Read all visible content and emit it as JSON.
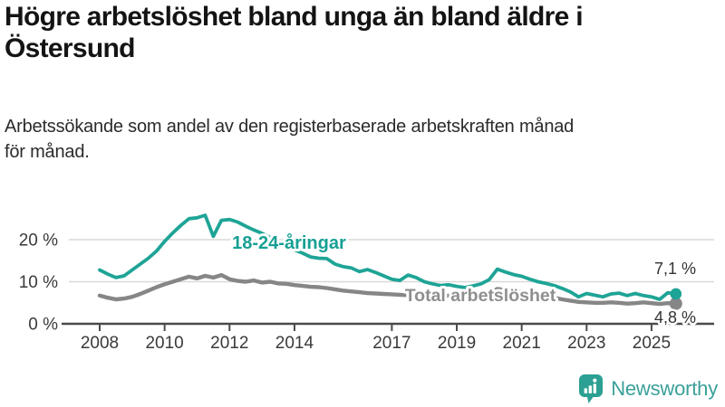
{
  "header": {
    "title_line1": "Högre arbetslöshet bland unga än bland äldre i",
    "title_line2": "Östersund",
    "subtitle_line1": "Arbetssökande som andel av den registerbaserade arbetskraften månad",
    "subtitle_line2": "för månad."
  },
  "footer": {
    "brand_name": "Newsworthy",
    "brand_color": "#3aa09a",
    "icon_color": "#2ba093"
  },
  "chart_data": {
    "type": "line",
    "title": "Högre arbetslöshet bland unga än bland äldre i Östersund",
    "subtitle": "Arbetssökande som andel av den registerbaserade arbetskraften månad för månad.",
    "grid": "horizontal",
    "legend_position": "inline-labels",
    "x_axis": {
      "ticks": [
        2008,
        2010,
        2012,
        2014,
        2017,
        2019,
        2021,
        2023,
        2025
      ],
      "range": [
        2007.3,
        2026.2
      ],
      "unit": "year, monthly observations"
    },
    "y_axis": {
      "ticks": [
        {
          "value": 0,
          "label": "0 %"
        },
        {
          "value": 10,
          "label": "10 %"
        },
        {
          "value": 20,
          "label": "20 %"
        }
      ],
      "range": [
        0,
        27
      ]
    },
    "series": [
      {
        "id": "total",
        "name": "Total arbetslöshet",
        "color": "#868686",
        "label_color": "#8f8f8f",
        "line_width": 4.4,
        "label_font_size": 19.5,
        "label_anchor": {
          "year": 2017.4,
          "value": 5.4
        },
        "end_label": "4,8 %",
        "end_value": 4.8,
        "end_label_position": "below",
        "start_year": 2008,
        "step_years": 0.25,
        "values": [
          6.7,
          6.2,
          5.8,
          6.0,
          6.4,
          7.1,
          7.9,
          8.7,
          9.4,
          10.0,
          10.6,
          11.2,
          10.8,
          11.4,
          11.0,
          11.6,
          10.6,
          10.2,
          10.0,
          10.3,
          9.8,
          10.0,
          9.6,
          9.5,
          9.2,
          9.0,
          8.8,
          8.7,
          8.5,
          8.2,
          7.9,
          7.7,
          7.5,
          7.3,
          7.2,
          7.1,
          7.0,
          6.9,
          6.8,
          6.9,
          6.8,
          6.6,
          6.5,
          6.7,
          6.5,
          6.4,
          6.6,
          6.8,
          7.2,
          8.3,
          8.0,
          7.8,
          7.6,
          7.2,
          6.8,
          6.5,
          6.2,
          5.8,
          5.5,
          5.2,
          5.1,
          5.0,
          5.0,
          5.1,
          5.0,
          4.8,
          4.9,
          5.1,
          4.9,
          4.7,
          4.9,
          4.8
        ]
      },
      {
        "id": "youth",
        "name": "18-24-åringar",
        "color": "#1ea496",
        "label_color": "#17a094",
        "line_width": 3.8,
        "label_font_size": 20,
        "label_anchor": {
          "year": 2012.08,
          "value": 17.9
        },
        "end_label": "7,1 %",
        "end_value": 7.1,
        "end_label_position": "above",
        "start_year": 2008,
        "step_years": 0.25,
        "values": [
          12.8,
          11.8,
          11.0,
          11.4,
          12.8,
          14.2,
          15.6,
          17.3,
          19.6,
          21.6,
          23.4,
          25.0,
          25.2,
          25.8,
          20.8,
          24.6,
          24.8,
          24.2,
          23.2,
          22.3,
          21.5,
          20.5,
          19.4,
          18.5,
          17.6,
          16.8,
          15.9,
          15.6,
          15.5,
          14.2,
          13.6,
          13.3,
          12.4,
          12.9,
          12.2,
          11.4,
          10.6,
          10.3,
          11.6,
          11.0,
          10.0,
          9.5,
          9.1,
          9.3,
          8.9,
          8.6,
          9.0,
          9.5,
          10.5,
          13.0,
          12.3,
          11.7,
          11.3,
          10.6,
          10.0,
          9.6,
          9.1,
          8.4,
          7.6,
          6.4,
          7.2,
          6.8,
          6.4,
          7.1,
          7.3,
          6.7,
          7.2,
          6.7,
          6.4,
          5.8,
          7.4,
          7.1
        ]
      }
    ],
    "axis_colors": {
      "axis_line": "#4a4a4a",
      "gridline": "#d9d9d9",
      "tick_text": "#3a3a3a",
      "end_label_text": "#333333"
    }
  }
}
